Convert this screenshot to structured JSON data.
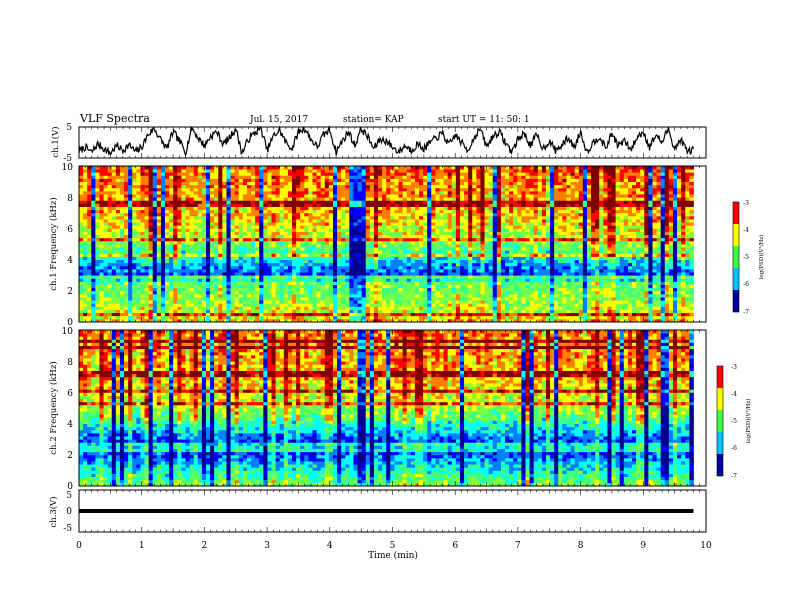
{
  "header": {
    "title": "VLF Spectra",
    "date": "Jul. 15, 2017",
    "station": "station= KAP",
    "start": "start UT =  11: 50: 1"
  },
  "colors": {
    "trace": "#000000",
    "colormap": [
      "#00008f",
      "#0000ff",
      "#0080ff",
      "#00ffff",
      "#40ff80",
      "#80ff40",
      "#ffff00",
      "#ff8000",
      "#ff0000",
      "#800000"
    ]
  },
  "chart_data": [
    {
      "type": "line",
      "panel": "ch1-waveform",
      "ylabel": "ch.1(V)",
      "ylim": [
        -5,
        5
      ],
      "yticks": [
        "5",
        "-5"
      ],
      "xlim": [
        0,
        10
      ],
      "series": [
        {
          "x": [
            0,
            0.1,
            0.2,
            0.3,
            0.4,
            0.5,
            0.6,
            0.7,
            0.8,
            0.9,
            1.0,
            1.1,
            1.2,
            1.3,
            1.4,
            1.5,
            1.6,
            1.7,
            1.8,
            1.9,
            2.0,
            2.1,
            2.2,
            2.3,
            2.4,
            2.5,
            2.6,
            2.7,
            2.8,
            2.9,
            3.0,
            3.1,
            3.2,
            3.3,
            3.4,
            3.5,
            3.6,
            3.7,
            3.8,
            3.9,
            4.0,
            4.1,
            4.2,
            4.3,
            4.4,
            4.5,
            4.6,
            4.7,
            4.8,
            4.9,
            5.0,
            5.1,
            5.2,
            5.3,
            5.4,
            5.5,
            5.6,
            5.7,
            5.8,
            5.9,
            6.0,
            6.1,
            6.2,
            6.3,
            6.4,
            6.5,
            6.6,
            6.7,
            6.8,
            6.9,
            7.0,
            7.1,
            7.2,
            7.3,
            7.4,
            7.5,
            7.6,
            7.7,
            7.8,
            7.9,
            8.0,
            8.1,
            8.2,
            8.3,
            8.4,
            8.5,
            8.6,
            8.7,
            8.8,
            8.9,
            9.0,
            9.1,
            9.2,
            9.3,
            9.4,
            9.5,
            9.6,
            9.7,
            9.8
          ],
          "y": [
            -2.8,
            -1.5,
            -3.2,
            -0.5,
            -2.0,
            -3.5,
            -1.0,
            -2.5,
            -0.8,
            -3.0,
            -1.5,
            2.5,
            4.5,
            1.0,
            -2.0,
            3.5,
            0.5,
            -3.0,
            4.8,
            1.5,
            -1.0,
            2.0,
            3.5,
            -0.5,
            1.5,
            4.5,
            -3.5,
            1.0,
            3.0,
            4.8,
            -2.5,
            2.0,
            4.0,
            0.0,
            -2.0,
            3.5,
            4.5,
            1.0,
            -1.5,
            2.5,
            4.0,
            -3.0,
            0.5,
            3.5,
            -1.0,
            4.5,
            2.0,
            -2.0,
            1.0,
            0.5,
            -1.5,
            -3.0,
            -1.0,
            -2.5,
            -0.5,
            -2.0,
            0.0,
            1.5,
            3.0,
            -1.0,
            2.5,
            0.0,
            -2.5,
            1.5,
            4.5,
            -1.5,
            2.0,
            3.5,
            0.0,
            -3.0,
            1.0,
            3.0,
            -1.0,
            2.5,
            -2.0,
            0.5,
            -2.5,
            -1.0,
            1.5,
            -1.5,
            3.5,
            -3.0,
            0.0,
            2.0,
            -2.0,
            3.0,
            -1.0,
            0.5,
            -2.5,
            1.5,
            3.5,
            -1.5,
            2.5,
            0.0,
            4.5,
            -2.0,
            1.0,
            -3.0,
            -2.0
          ]
        }
      ]
    },
    {
      "type": "heatmap",
      "panel": "ch1-spectrogram",
      "ylabel": "ch.1 Frequency (kHz)",
      "ylim": [
        0,
        10
      ],
      "yticks": [
        "0",
        "2",
        "4",
        "6",
        "8",
        "10"
      ],
      "xlim": [
        0,
        10
      ],
      "colorbar": {
        "title": "log(PSD)(V²/Hz)",
        "range": [
          -7,
          -3
        ],
        "ticks": [
          "-3",
          "-4",
          "-5",
          "-6",
          "-7"
        ]
      },
      "profile_khz": [
        0,
        0.5,
        1.5,
        2.5,
        3.0,
        3.5,
        4.5,
        5.5,
        7.0,
        9.0,
        10.0
      ],
      "profile_log_psd": [
        -4.2,
        -4.5,
        -4.8,
        -5.0,
        -6.2,
        -6.0,
        -5.2,
        -4.6,
        -4.2,
        -4.0,
        -3.8
      ]
    },
    {
      "type": "heatmap",
      "panel": "ch2-spectrogram",
      "ylabel": "ch.2 Frequency (kHz)",
      "ylim": [
        0,
        10
      ],
      "yticks": [
        "0",
        "2",
        "4",
        "6",
        "8",
        "10"
      ],
      "xlim": [
        0,
        10
      ],
      "colorbar": {
        "title": "log(PSD)(V²/Hz)",
        "range": [
          -7,
          -3
        ],
        "ticks": [
          "-3",
          "-4",
          "-5",
          "-6",
          "-7"
        ]
      },
      "profile_khz": [
        0,
        0.5,
        1.5,
        2.5,
        3.0,
        3.5,
        4.5,
        5.5,
        7.0,
        9.0,
        10.0
      ],
      "profile_log_psd": [
        -4.8,
        -5.2,
        -5.8,
        -6.5,
        -6.2,
        -5.8,
        -5.0,
        -4.6,
        -4.2,
        -4.1,
        -4.0
      ]
    },
    {
      "type": "line",
      "panel": "ch3-waveform",
      "ylabel": "ch.3(V)",
      "ylim": [
        -5,
        5
      ],
      "yticks": [
        "5",
        "0",
        "-5"
      ],
      "xlim": [
        0,
        10
      ],
      "xlabel": "Time (min)",
      "xticks": [
        "0",
        "1",
        "2",
        "3",
        "4",
        "5",
        "6",
        "7",
        "8",
        "9",
        "10"
      ],
      "series": [
        {
          "x": [
            0,
            9.8
          ],
          "y": [
            0,
            0
          ]
        }
      ]
    }
  ]
}
